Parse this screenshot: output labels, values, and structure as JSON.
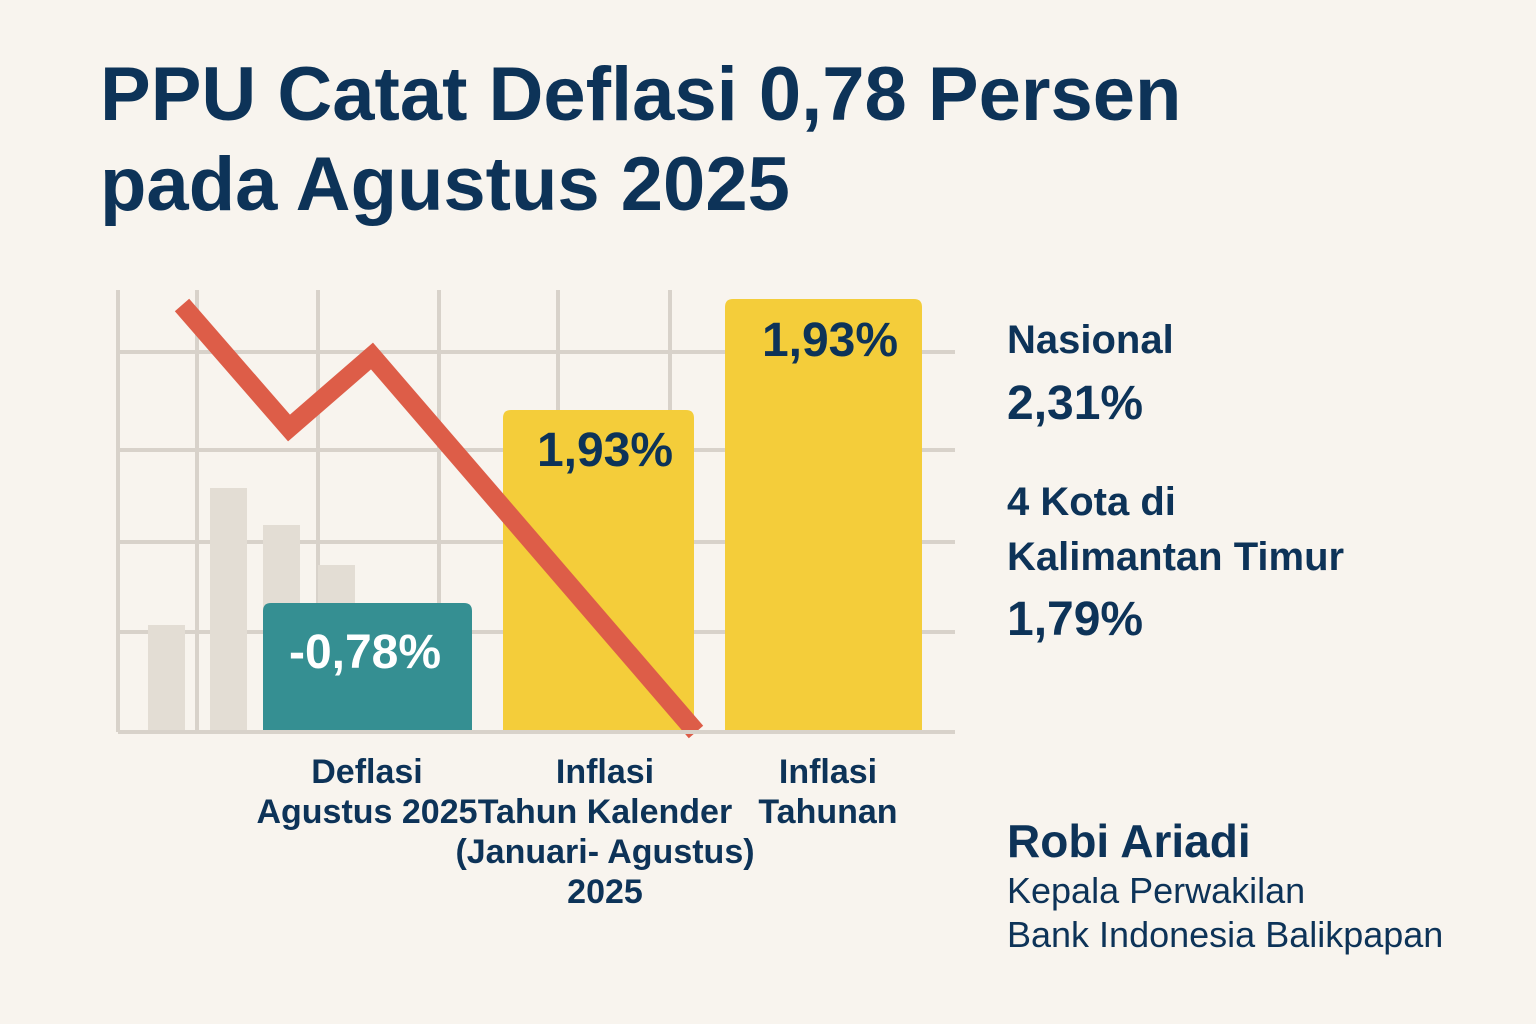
{
  "title_line1": "PPU Catat Deflasi 0,78 Persen",
  "title_line2": "pada Agustus 2025",
  "chart_data": {
    "type": "bar",
    "categories": [
      "Deflasi Agustus 2025",
      "Inflasi Tahun Kalender (Januari- Agustus) 2025",
      "Inflasi Tahunan"
    ],
    "category_lines": [
      [
        "Deflasi",
        "Agustus 2025"
      ],
      [
        "Inflasi",
        "Tahun Kalender",
        "(Januari- Agustus)",
        "2025"
      ],
      [
        "Inflasi",
        "Tahunan"
      ]
    ],
    "values": [
      -0.78,
      1.93,
      1.93
    ],
    "data_labels": [
      "-0,78%",
      "1,93%",
      "1,93%"
    ],
    "colors": [
      "#358f92",
      "#f4cd3a",
      "#f4cd3a"
    ],
    "trend_color": "#dd5d48",
    "grid": true
  },
  "side": {
    "national_label": "Nasional",
    "national_value": "2,31%",
    "kaltim_label_1": "4 Kota di",
    "kaltim_label_2": "Kalimantan Timur",
    "kaltim_value": "1,79%"
  },
  "source": {
    "name": "Robi Ariadi",
    "role_1": "Kepala Perwakilan",
    "role_2": "Bank Indonesia Balikpapan"
  }
}
